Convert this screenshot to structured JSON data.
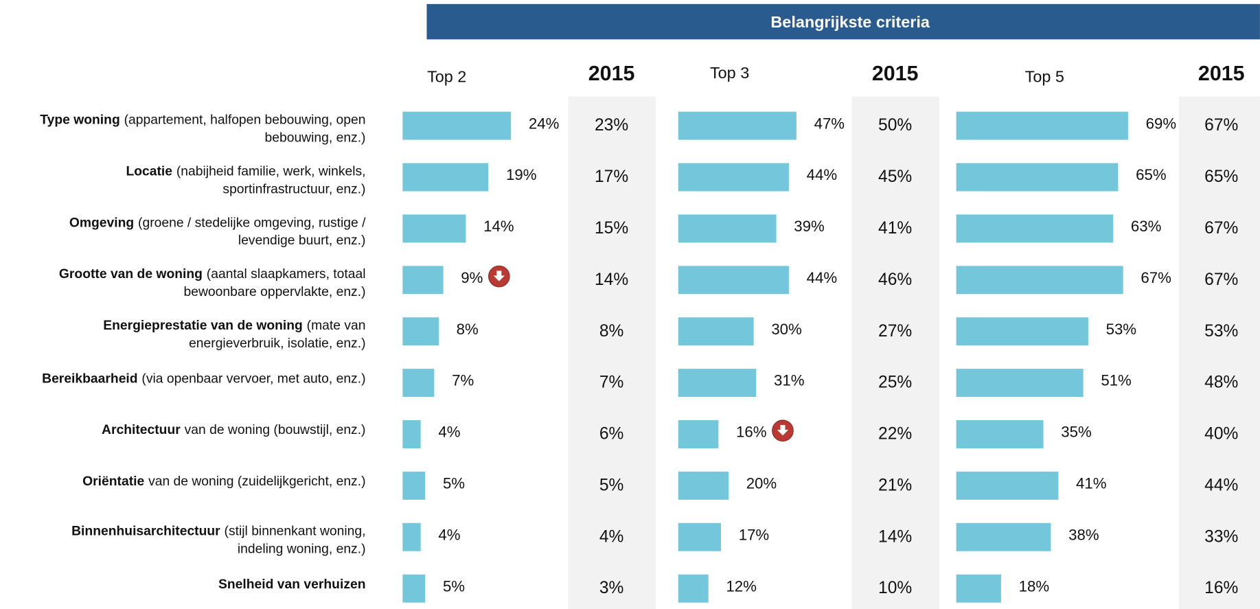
{
  "chart_data": {
    "type": "bar",
    "title": "Belangrijkste criteria",
    "categories": [
      {
        "bold": "Type woning",
        "lines": [
          "(appartement, halfopen bebouwing, open",
          "bebouwing, enz.)"
        ]
      },
      {
        "bold": "Locatie",
        "lines": [
          "(nabijheid familie, werk, winkels,",
          "sportinfrastructuur, enz.)"
        ]
      },
      {
        "bold": "Omgeving",
        "lines": [
          "(groene / stedelijke omgeving, rustige /",
          "levendige buurt, enz.)"
        ]
      },
      {
        "bold": "Grootte van de woning",
        "lines": [
          "(aantal slaapkamers, totaal",
          "bewoonbare oppervlakte, enz.)"
        ]
      },
      {
        "bold": "Energieprestatie van de woning",
        "lines": [
          "(mate van",
          "energieverbruik, isolatie, enz.)"
        ]
      },
      {
        "bold": "Bereikbaarheid",
        "lines": [
          "(via openbaar vervoer, met auto, enz.)"
        ]
      },
      {
        "bold": "Architectuur",
        "lines": [
          "van de woning (bouwstijl, enz.)"
        ]
      },
      {
        "bold": "Oriëntatie",
        "lines": [
          "van de woning (zuidelijkgericht, enz.)"
        ]
      },
      {
        "bold": "Binnenhuisarchitectuur",
        "lines": [
          "(stijl binnenkant woning,",
          "indeling woning, enz.)"
        ]
      },
      {
        "bold": "Snelheid van verhuizen",
        "lines": []
      }
    ],
    "color": "#74c6da",
    "xlim": [
      0,
      100
    ],
    "series": [
      {
        "name": "Top 2",
        "values": [
          24,
          19,
          14,
          9,
          8,
          7,
          4,
          5,
          4,
          5
        ],
        "value_labels": [
          "24%",
          "19%",
          "14%",
          "9%",
          "8%",
          "7%",
          "4%",
          "5%",
          "4%",
          "5%"
        ],
        "down": [
          3
        ],
        "compare_name": "2015",
        "compare_labels": [
          "23%",
          "17%",
          "15%",
          "14%",
          "8%",
          "7%",
          "6%",
          "5%",
          "4%",
          "3%"
        ]
      },
      {
        "name": "Top 3",
        "values": [
          47,
          44,
          39,
          44,
          30,
          31,
          16,
          20,
          17,
          12
        ],
        "value_labels": [
          "47%",
          "44%",
          "39%",
          "44%",
          "30%",
          "31%",
          "16%",
          "20%",
          "17%",
          "12%"
        ],
        "down": [
          6
        ],
        "compare_name": "2015",
        "compare_labels": [
          "50%",
          "45%",
          "41%",
          "46%",
          "27%",
          "25%",
          "22%",
          "21%",
          "14%",
          "10%"
        ]
      },
      {
        "name": "Top 5",
        "values": [
          69,
          65,
          63,
          67,
          53,
          51,
          35,
          41,
          38,
          18
        ],
        "value_labels": [
          "69%",
          "65%",
          "63%",
          "67%",
          "53%",
          "51%",
          "35%",
          "41%",
          "38%",
          "18%"
        ],
        "down": [],
        "compare_name": "2015",
        "compare_labels": [
          "67%",
          "65%",
          "67%",
          "67%",
          "53%",
          "48%",
          "40%",
          "44%",
          "33%",
          "16%"
        ]
      }
    ]
  }
}
